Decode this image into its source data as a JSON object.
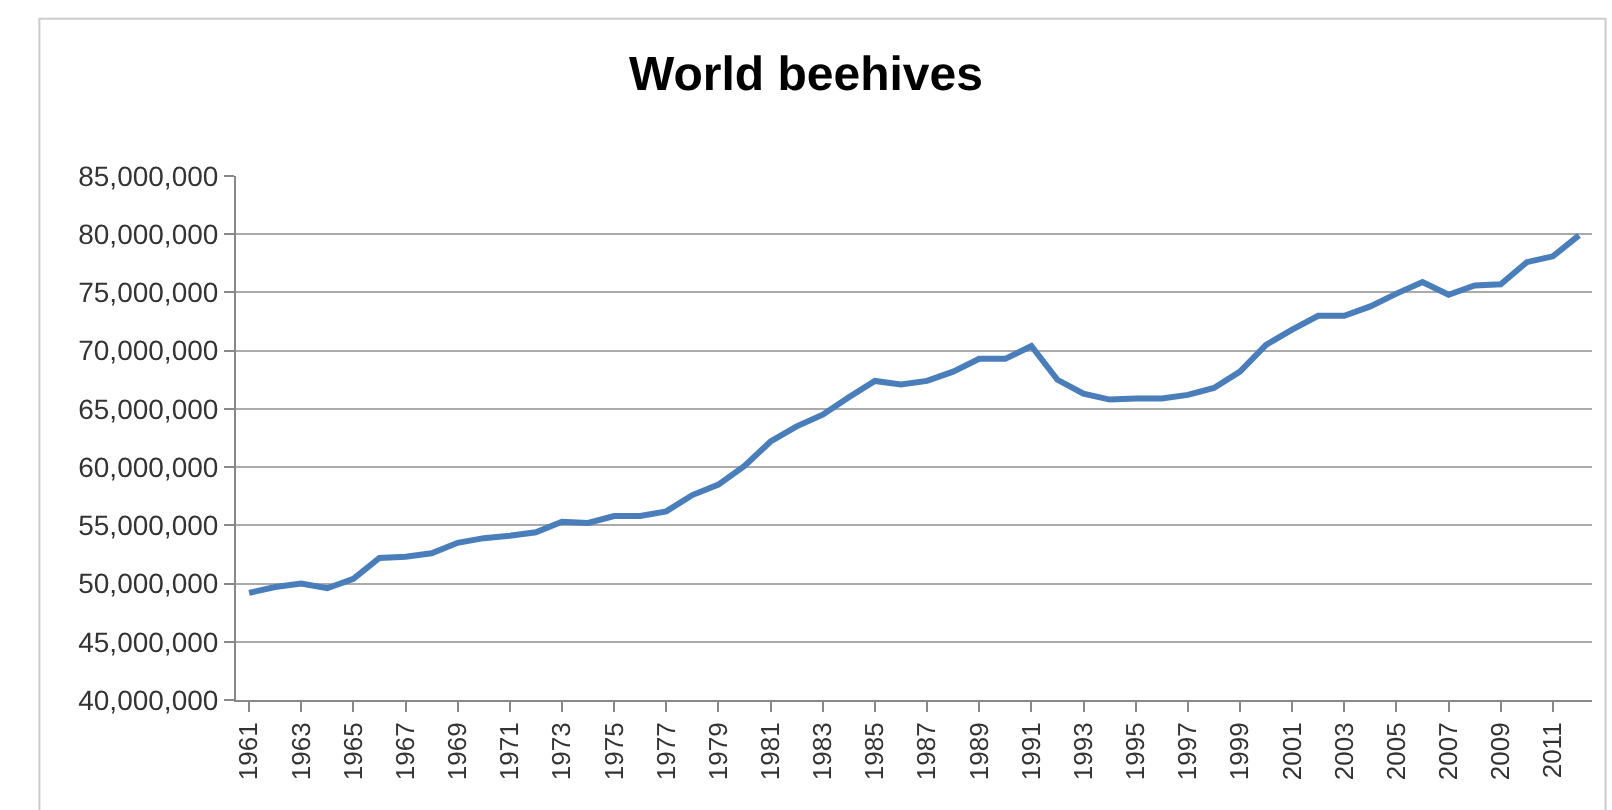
{
  "chart_data": {
    "type": "line",
    "title": "World beehives",
    "categories": [
      "1961",
      null,
      "1963",
      null,
      "1965",
      null,
      "1967",
      null,
      "1969",
      null,
      "1971",
      null,
      "1973",
      null,
      "1975",
      null,
      "1977",
      null,
      "1979",
      null,
      "1981",
      null,
      "1983",
      null,
      "1985",
      null,
      "1987",
      null,
      "1989",
      null,
      "1991",
      null,
      "1993",
      null,
      "1995",
      null,
      "1997",
      null,
      "1999",
      null,
      "2001",
      null,
      "2003",
      null,
      "2005",
      null,
      "2007",
      null,
      "2009",
      null,
      "2011",
      null
    ],
    "series": [
      {
        "color": "#4a7ebb",
        "values": [
          49200000,
          49700000,
          50000000,
          49600000,
          50400000,
          52200000,
          52300000,
          52600000,
          53500000,
          53900000,
          54100000,
          54400000,
          55300000,
          55200000,
          55800000,
          55800000,
          56200000,
          57600000,
          58500000,
          60100000,
          62200000,
          63500000,
          64500000,
          66000000,
          67400000,
          67100000,
          67400000,
          68200000,
          69300000,
          69300000,
          70400000,
          67500000,
          66300000,
          65800000,
          65900000,
          65900000,
          66200000,
          66800000,
          68200000,
          70500000,
          71800000,
          73000000,
          73000000,
          73800000,
          74900000,
          75900000,
          74800000,
          75600000,
          75700000,
          77600000,
          78100000,
          79900000
        ]
      }
    ],
    "ylim": [
      40000000,
      85000000
    ],
    "yticks": [
      {
        "value": 40000000,
        "label": "40,000,000"
      },
      {
        "value": 45000000,
        "label": "45,000,000"
      },
      {
        "value": 50000000,
        "label": "50,000,000"
      },
      {
        "value": 55000000,
        "label": "55,000,000"
      },
      {
        "value": 60000000,
        "label": "60,000,000"
      },
      {
        "value": 65000000,
        "label": "65,000,000"
      },
      {
        "value": 70000000,
        "label": "70,000,000"
      },
      {
        "value": 75000000,
        "label": "75,000,000"
      },
      {
        "value": 80000000,
        "label": "80,000,000"
      },
      {
        "value": 85000000,
        "label": "85,000,000"
      }
    ],
    "grid": "y",
    "marker": "none",
    "line_style": "solid"
  }
}
